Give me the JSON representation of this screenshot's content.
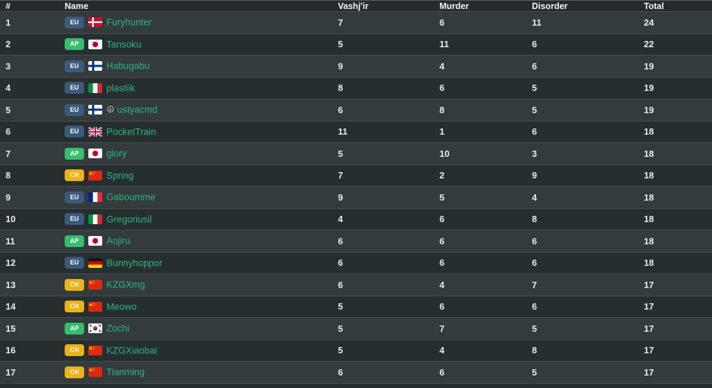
{
  "table": {
    "columns": {
      "rank": "#",
      "name": "Name",
      "vashjir": "Vashj'ir",
      "murder": "Murder",
      "disorder": "Disorder",
      "total": "Total"
    },
    "rows": [
      {
        "rank": "1",
        "region": "EU",
        "flag": "denmark",
        "name": "Furyhunter",
        "vashjir": "7",
        "murder": "6",
        "disorder": "11",
        "total": "24"
      },
      {
        "rank": "2",
        "region": "AP",
        "flag": "japan",
        "name": "Tansoku",
        "vashjir": "5",
        "murder": "11",
        "disorder": "6",
        "total": "22"
      },
      {
        "rank": "3",
        "region": "EU",
        "flag": "finland",
        "name": "Habugabu",
        "vashjir": "9",
        "murder": "4",
        "disorder": "6",
        "total": "19"
      },
      {
        "rank": "4",
        "region": "EU",
        "flag": "italy",
        "name": "plastiik",
        "vashjir": "8",
        "murder": "6",
        "disorder": "5",
        "total": "19"
      },
      {
        "rank": "5",
        "region": "EU",
        "flag": "finland",
        "prefix": "☮",
        "name": "ustyacmd",
        "vashjir": "6",
        "murder": "8",
        "disorder": "5",
        "total": "19"
      },
      {
        "rank": "6",
        "region": "EU",
        "flag": "united-kingdom",
        "name": "PocketTrain",
        "vashjir": "11",
        "murder": "1",
        "disorder": "6",
        "total": "18"
      },
      {
        "rank": "7",
        "region": "AP",
        "flag": "japan",
        "name": "glory",
        "vashjir": "5",
        "murder": "10",
        "disorder": "3",
        "total": "18"
      },
      {
        "rank": "8",
        "region": "CN",
        "flag": "china",
        "name": "Spring",
        "vashjir": "7",
        "murder": "2",
        "disorder": "9",
        "total": "18"
      },
      {
        "rank": "9",
        "region": "EU",
        "flag": "france",
        "name": "Gaboumme",
        "vashjir": "9",
        "murder": "5",
        "disorder": "4",
        "total": "18"
      },
      {
        "rank": "10",
        "region": "EU",
        "flag": "italy",
        "name": "Gregoriusil",
        "vashjir": "4",
        "murder": "6",
        "disorder": "8",
        "total": "18"
      },
      {
        "rank": "11",
        "region": "AP",
        "flag": "japan",
        "name": "Aojiru",
        "vashjir": "6",
        "murder": "6",
        "disorder": "6",
        "total": "18"
      },
      {
        "rank": "12",
        "region": "EU",
        "flag": "germany",
        "name": "Bunnyhoppor",
        "vashjir": "6",
        "murder": "6",
        "disorder": "6",
        "total": "18"
      },
      {
        "rank": "13",
        "region": "CN",
        "flag": "china",
        "name": "KZGXmg",
        "vashjir": "6",
        "murder": "4",
        "disorder": "7",
        "total": "17"
      },
      {
        "rank": "14",
        "region": "CN",
        "flag": "china",
        "name": "Meowo",
        "vashjir": "5",
        "murder": "6",
        "disorder": "6",
        "total": "17"
      },
      {
        "rank": "15",
        "region": "AP",
        "flag": "south-korea",
        "name": "Zochi",
        "vashjir": "5",
        "murder": "7",
        "disorder": "5",
        "total": "17"
      },
      {
        "rank": "16",
        "region": "CN",
        "flag": "china",
        "name": "KZGXiaobai",
        "vashjir": "5",
        "murder": "4",
        "disorder": "8",
        "total": "17"
      },
      {
        "rank": "17",
        "region": "CN",
        "flag": "china",
        "name": "Tianming",
        "vashjir": "6",
        "murder": "6",
        "disorder": "5",
        "total": "17"
      }
    ]
  },
  "icons": {
    "peace": "☮"
  },
  "colors": {
    "header_bg": "#252b2d",
    "row_odd_bg": "#333b3d",
    "row_even_bg": "#272e30",
    "row_border": "#454f51",
    "name_link": "#2db381",
    "number_text": "#e9eceb",
    "badge_eu": "#3d5a7d",
    "badge_ap": "#36bd70",
    "badge_cn": "#e9b31a"
  }
}
